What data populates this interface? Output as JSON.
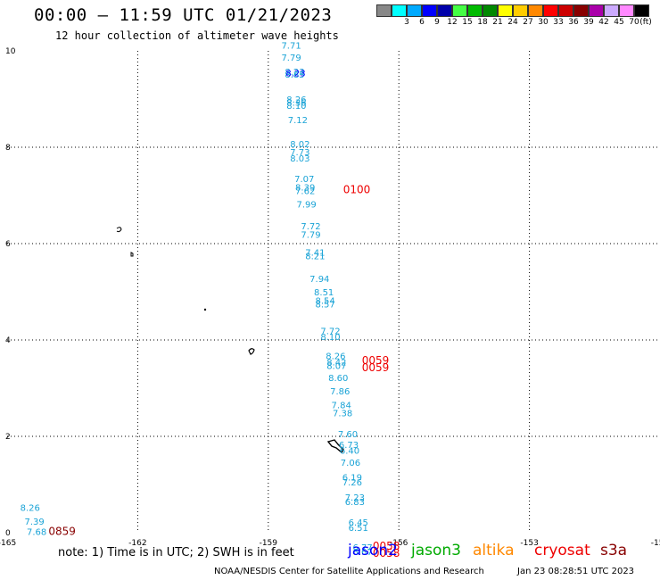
{
  "header": {
    "title": "00:00 – 11:59 UTC 01/21/2023",
    "subtitle": "12 hour collection of altimeter wave heights"
  },
  "legend": {
    "unit_label": "(ft)",
    "swatches": [
      {
        "color": "#888888",
        "label": ""
      },
      {
        "color": "#00ffff",
        "label": "3"
      },
      {
        "color": "#00aaff",
        "label": "6"
      },
      {
        "color": "#0000ff",
        "label": "9"
      },
      {
        "color": "#0000aa",
        "label": "12"
      },
      {
        "color": "#44ff44",
        "label": "15"
      },
      {
        "color": "#00bb00",
        "label": "18"
      },
      {
        "color": "#008800",
        "label": "21"
      },
      {
        "color": "#ffff00",
        "label": "24"
      },
      {
        "color": "#ffcc00",
        "label": "27"
      },
      {
        "color": "#ff8800",
        "label": "30"
      },
      {
        "color": "#ff0000",
        "label": "33"
      },
      {
        "color": "#cc0000",
        "label": "36"
      },
      {
        "color": "#880000",
        "label": "39"
      },
      {
        "color": "#aa00aa",
        "label": "42"
      },
      {
        "color": "#ccaaff",
        "label": "45"
      },
      {
        "color": "#ff88ff",
        "label": "70"
      },
      {
        "color": "#000000",
        "label": ""
      }
    ]
  },
  "chart_data": {
    "type": "scatter",
    "title": "00:00 – 11:59 UTC 01/21/2023",
    "subtitle": "12 hour collection of altimeter wave heights",
    "xlim": [
      -165,
      -150
    ],
    "ylim": [
      0,
      10
    ],
    "xticks": [
      {
        "value": -165,
        "label": "-165"
      },
      {
        "value": -162,
        "label": "-162"
      },
      {
        "value": -159,
        "label": "-159"
      },
      {
        "value": -156,
        "label": "-156"
      },
      {
        "value": -153,
        "label": "-153"
      },
      {
        "value": -150,
        "label": "-150"
      }
    ],
    "yticks": [
      {
        "value": 0,
        "label": "0"
      },
      {
        "value": 2,
        "label": "2"
      },
      {
        "value": 4,
        "label": "4"
      },
      {
        "value": 6,
        "label": "6"
      },
      {
        "value": 8,
        "label": "8"
      },
      {
        "value": 10,
        "label": "10"
      }
    ],
    "grid": true,
    "series": [
      {
        "name": "jason3",
        "color": "#1aa3d6",
        "points": [
          {
            "x": -158.7,
            "y": 10.05,
            "label": "7.71"
          },
          {
            "x": -158.7,
            "y": 9.8,
            "label": "7.79"
          },
          {
            "x": -158.62,
            "y": 9.5,
            "label": "8.23"
          },
          {
            "x": -158.62,
            "y": 9.44,
            "label": "8.85"
          },
          {
            "x": -158.58,
            "y": 8.93,
            "label": "8.26"
          },
          {
            "x": -158.58,
            "y": 8.86,
            "label": "8.36"
          },
          {
            "x": -158.58,
            "y": 8.8,
            "label": "8.10"
          },
          {
            "x": -158.55,
            "y": 8.5,
            "label": "7.12"
          },
          {
            "x": -158.5,
            "y": 8.0,
            "label": "8.02"
          },
          {
            "x": -158.5,
            "y": 7.83,
            "label": "7.73"
          },
          {
            "x": -158.5,
            "y": 7.7,
            "label": "8.03"
          },
          {
            "x": -158.4,
            "y": 7.28,
            "label": "7.07"
          },
          {
            "x": -158.38,
            "y": 7.1,
            "label": "8.39"
          },
          {
            "x": -158.38,
            "y": 7.03,
            "label": "7.62"
          },
          {
            "x": -158.35,
            "y": 6.75,
            "label": "7.99"
          },
          {
            "x": -158.25,
            "y": 6.3,
            "label": "7.72"
          },
          {
            "x": -158.25,
            "y": 6.12,
            "label": "7.79"
          },
          {
            "x": -158.15,
            "y": 5.75,
            "label": "7.41"
          },
          {
            "x": -158.15,
            "y": 5.68,
            "label": "8.21"
          },
          {
            "x": -158.05,
            "y": 5.2,
            "label": "7.94"
          },
          {
            "x": -157.95,
            "y": 4.93,
            "label": "8.51"
          },
          {
            "x": -157.92,
            "y": 4.75,
            "label": "8.54"
          },
          {
            "x": -157.92,
            "y": 4.68,
            "label": "8.57"
          },
          {
            "x": -157.8,
            "y": 4.12,
            "label": "7.72"
          },
          {
            "x": -157.8,
            "y": 4.0,
            "label": "8.10"
          },
          {
            "x": -157.68,
            "y": 3.6,
            "label": "8.26"
          },
          {
            "x": -157.66,
            "y": 3.47,
            "label": "8.42"
          },
          {
            "x": -157.66,
            "y": 3.4,
            "label": "8.07"
          },
          {
            "x": -157.62,
            "y": 3.15,
            "label": "8.60"
          },
          {
            "x": -157.58,
            "y": 2.87,
            "label": "7.86"
          },
          {
            "x": -157.55,
            "y": 2.58,
            "label": "7.84"
          },
          {
            "x": -157.52,
            "y": 2.42,
            "label": "7.38"
          },
          {
            "x": -157.4,
            "y": 1.98,
            "label": "7.60"
          },
          {
            "x": -157.38,
            "y": 1.76,
            "label": "6.73"
          },
          {
            "x": -157.36,
            "y": 1.64,
            "label": "6.40"
          },
          {
            "x": -157.34,
            "y": 1.39,
            "label": "7.06"
          },
          {
            "x": -157.3,
            "y": 1.08,
            "label": "6.19"
          },
          {
            "x": -157.3,
            "y": 0.98,
            "label": "7.26"
          },
          {
            "x": -157.24,
            "y": 0.67,
            "label": "7.23"
          },
          {
            "x": -157.24,
            "y": 0.57,
            "label": "6.83"
          },
          {
            "x": -157.16,
            "y": 0.15,
            "label": "6.45"
          },
          {
            "x": -157.16,
            "y": 0.04,
            "label": "6.51"
          },
          {
            "x": -157.06,
            "y": -0.37,
            "label": "6.77"
          },
          {
            "x": -157.06,
            "y": -0.46,
            "label": "6.67"
          },
          {
            "x": -164.7,
            "y": 0.45,
            "label": "8.26"
          },
          {
            "x": -164.6,
            "y": 0.17,
            "label": "7.39"
          },
          {
            "x": -164.55,
            "y": -0.05,
            "label": "7.68"
          }
        ]
      },
      {
        "name": "jason2",
        "color": "#0000ff",
        "points": [
          {
            "x": -158.6,
            "y": 9.47,
            "label": "8.23"
          }
        ]
      },
      {
        "name": "cryosat",
        "color": "#ee0000",
        "points": [
          {
            "x": -157.28,
            "y": 7.05,
            "label": "0100"
          },
          {
            "x": -156.85,
            "y": 3.5,
            "label": "0059"
          },
          {
            "x": -156.85,
            "y": 3.35,
            "label": "0059"
          },
          {
            "x": -156.6,
            "y": -0.35,
            "label": "0058"
          },
          {
            "x": -156.6,
            "y": -0.5,
            "label": "0058"
          }
        ]
      },
      {
        "name": "s3a",
        "color": "#880000",
        "points": [
          {
            "x": -164.05,
            "y": -0.05,
            "label": "0859"
          }
        ]
      }
    ]
  },
  "footer": {
    "note": "note: 1) Time is in UTC; 2) SWH is in feet",
    "satellites": [
      {
        "name": "jason2",
        "color": "#0000ff"
      },
      {
        "name": "jason3",
        "color": "#00aa00"
      },
      {
        "name": "altika",
        "color": "#ff8800"
      },
      {
        "name": "cryosat",
        "color": "#ee0000"
      },
      {
        "name": "s3a",
        "color": "#880000"
      }
    ],
    "credit": "NOAA/NESDIS Center for Satellite Applications and Research",
    "timestamp": "Jan 23 08:28:51 UTC 2023"
  }
}
